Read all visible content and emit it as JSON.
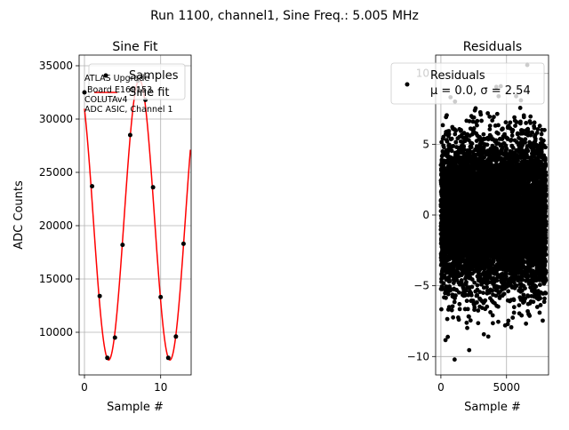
{
  "suptitle": "Run 1100, channel1, Sine Freq.: 5.005 MHz",
  "chart_data": [
    {
      "type": "scatter",
      "title": "Sine Fit",
      "xlabel": "Sample #",
      "ylabel": "ADC Counts",
      "xlim": [
        -0.7,
        14.0
      ],
      "ylim": [
        6000,
        36000
      ],
      "xticks": [
        0,
        10
      ],
      "yticks": [
        10000,
        15000,
        20000,
        25000,
        30000,
        35000
      ],
      "grid": true,
      "legend": {
        "placement": "top-right",
        "entries": [
          "Samples",
          "Sine fit"
        ]
      },
      "annotation": [
        "ATLAS Upgrade",
        "Board E169153",
        "COLUTAv4",
        "ADC ASIC, Channel 1"
      ],
      "series": [
        {
          "name": "Samples",
          "marker": "dot",
          "color": "#000000",
          "x": [
            0,
            1,
            2,
            3,
            4,
            5,
            6,
            7,
            8,
            9,
            10,
            11,
            12,
            13
          ],
          "y": [
            32500,
            23700,
            13400,
            7600,
            9500,
            18200,
            28500,
            33600,
            31800,
            23600,
            13300,
            7600,
            9600,
            18300
          ]
        },
        {
          "name": "Sine fit",
          "line": "solid",
          "color": "#ff0000",
          "model": {
            "offset": 20550,
            "amplitude": 13150,
            "period": 8.04,
            "phase_sample": 7.2
          },
          "x_range": [
            0,
            13.9
          ]
        }
      ]
    },
    {
      "type": "scatter",
      "title": "Residuals",
      "xlabel": "Sample #",
      "ylabel": "",
      "xlim": [
        -400,
        8200
      ],
      "ylim": [
        -11.3,
        11.3
      ],
      "xticks": [
        0,
        5000
      ],
      "yticks": [
        -10,
        -5,
        0,
        5,
        10
      ],
      "grid": true,
      "legend": {
        "placement": "top-right",
        "entries": [
          "Residuals",
          "μ = 0.0, σ = 2.54"
        ]
      },
      "series": [
        {
          "name": "Residuals",
          "marker": "dot",
          "color": "#000000",
          "count": 8000,
          "x_range": [
            0,
            7999
          ],
          "mean": 0.0,
          "sigma": 2.54
        }
      ]
    }
  ]
}
